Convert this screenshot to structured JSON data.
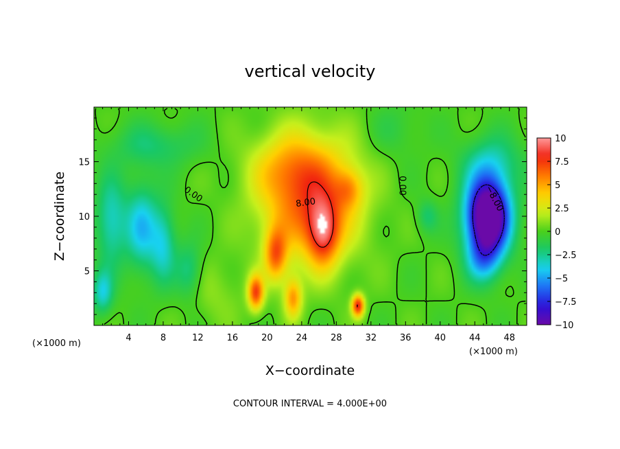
{
  "chart_data": {
    "type": "heatmap",
    "title": "vertical velocity",
    "xlabel": "X−coordinate",
    "ylabel": "Z−coordinate",
    "x_unit_left": "(×1000 m)",
    "x_unit_right": "(×1000 m)",
    "xlim": [
      0,
      50
    ],
    "ylim": [
      0,
      20
    ],
    "x_ticks": [
      4,
      8,
      12,
      16,
      20,
      24,
      28,
      32,
      36,
      40,
      44,
      48
    ],
    "x_tick_labels": [
      "4",
      "8",
      "12",
      "16",
      "20",
      "24",
      "28",
      "32",
      "36",
      "40",
      "44",
      "48"
    ],
    "y_ticks": [
      5,
      10,
      15
    ],
    "y_tick_labels": [
      "5",
      "10",
      "15"
    ],
    "colorbar": {
      "min": -10,
      "max": 10,
      "ticks": [
        10,
        7.5,
        5,
        2.5,
        0,
        -2.5,
        -5,
        -7.5,
        -10
      ],
      "tick_labels": [
        "10",
        "7.5",
        "5",
        "2.5",
        "0",
        "−2.5",
        "−5",
        "−7.5",
        "−10"
      ],
      "colors": [
        "#6a0aa8",
        "#2b10d8",
        "#1e6ef5",
        "#18d2f0",
        "#18c868",
        "#4ad01c",
        "#c8f01c",
        "#ffd000",
        "#ff7800",
        "#f02010",
        "#ff9a9a",
        "#ffffff"
      ]
    },
    "features": [
      {
        "x": 25.0,
        "y": 11.5,
        "sx": 5.5,
        "sy": 5.5,
        "amp": 6.5
      },
      {
        "x": 22.5,
        "y": 14.5,
        "sx": 4.5,
        "sy": 3.0,
        "amp": 2.5
      },
      {
        "x": 26.5,
        "y": 8.5,
        "sx": 1.8,
        "sy": 3.0,
        "amp": 6.0
      },
      {
        "x": 21.0,
        "y": 6.5,
        "sx": 1.3,
        "sy": 2.4,
        "amp": 5.5
      },
      {
        "x": 18.7,
        "y": 3.0,
        "sx": 0.9,
        "sy": 1.6,
        "amp": 7.0
      },
      {
        "x": 23.0,
        "y": 2.5,
        "sx": 1.0,
        "sy": 1.8,
        "amp": 5.0
      },
      {
        "x": 30.5,
        "y": 1.8,
        "sx": 0.7,
        "sy": 1.0,
        "amp": 8.0
      },
      {
        "x": 29.5,
        "y": 12.5,
        "sx": 1.6,
        "sy": 1.8,
        "amp": 3.0
      },
      {
        "x": 45.5,
        "y": 10.0,
        "sx": 2.5,
        "sy": 3.5,
        "amp": -13.5
      },
      {
        "x": 45.0,
        "y": 6.0,
        "sx": 2.0,
        "sy": 2.2,
        "amp": -3.5
      },
      {
        "x": 5.5,
        "y": 9.0,
        "sx": 1.8,
        "sy": 4.0,
        "amp": -4.0
      },
      {
        "x": 2.0,
        "y": 9.5,
        "sx": 1.8,
        "sy": 4.0,
        "amp": -3.5
      },
      {
        "x": 8.0,
        "y": 7.5,
        "sx": 1.5,
        "sy": 3.5,
        "amp": -3.5
      },
      {
        "x": 1.0,
        "y": 3.0,
        "sx": 1.2,
        "sy": 2.0,
        "amp": -3.5
      },
      {
        "x": 11.0,
        "y": 5.0,
        "sx": 1.5,
        "sy": 2.5,
        "amp": -2.5
      },
      {
        "x": 7.0,
        "y": 16.5,
        "sx": 5.0,
        "sy": 2.0,
        "amp": -2.0
      },
      {
        "x": 46.0,
        "y": 15.0,
        "sx": 3.5,
        "sy": 2.5,
        "amp": -2.5
      },
      {
        "x": 38.5,
        "y": 10.0,
        "sx": 1.2,
        "sy": 1.5,
        "amp": -2.0
      },
      {
        "x": 35.0,
        "y": 18.0,
        "sx": 3.0,
        "sy": 2.5,
        "amp": -1.0
      },
      {
        "x": 14.0,
        "y": 3.0,
        "sx": 3.0,
        "sy": 3.0,
        "amp": 1.0
      }
    ],
    "contour_interval": 4.0,
    "contour_labels": [
      "0.00",
      "8.00",
      "0.00",
      "−8.00"
    ],
    "footer": "CONTOUR INTERVAL = 4.000E+00"
  }
}
